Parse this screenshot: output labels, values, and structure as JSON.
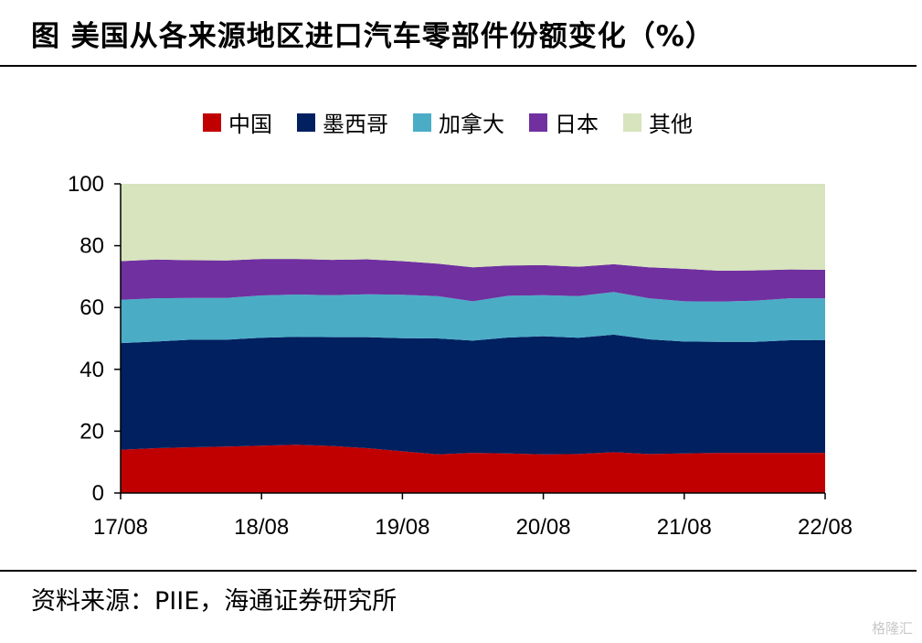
{
  "title": "图 美国从各来源地区进口汽车零部件份额变化（%）",
  "source": "资料来源：PIIE，海通证券研究所",
  "watermark": "格隆汇",
  "chart_data": {
    "type": "area",
    "stacked": true,
    "title": "美国从各来源地区进口汽车零部件份额变化（%）",
    "xlabel": "",
    "ylabel": "",
    "ylim": [
      0,
      100
    ],
    "yticks": [
      "0",
      "20",
      "40",
      "60",
      "80",
      "100"
    ],
    "xtick_labels": [
      "17/08",
      "18/08",
      "19/08",
      "20/08",
      "21/08",
      "22/08"
    ],
    "legend_position": "top",
    "n_points": 21,
    "series": [
      {
        "name": "中国",
        "color": "#c00000",
        "values": [
          14.0,
          14.5,
          14.8,
          15.0,
          15.3,
          15.6,
          15.2,
          14.5,
          13.5,
          12.5,
          13.0,
          12.8,
          12.5,
          12.6,
          13.2,
          12.6,
          12.8,
          13.0,
          13.0,
          13.0,
          13.0
        ]
      },
      {
        "name": "墨西哥",
        "color": "#002060",
        "values": [
          34.5,
          34.5,
          34.8,
          34.6,
          34.9,
          34.9,
          35.2,
          35.9,
          36.6,
          37.5,
          36.3,
          37.5,
          38.2,
          37.6,
          38.0,
          37.1,
          36.2,
          35.9,
          35.9,
          36.4,
          36.5
        ]
      },
      {
        "name": "加拿大",
        "color": "#4bacc6",
        "values": [
          14.0,
          14.0,
          13.5,
          13.5,
          13.7,
          13.7,
          13.6,
          13.9,
          14.0,
          13.7,
          12.7,
          13.5,
          13.3,
          13.5,
          13.8,
          13.3,
          13.0,
          13.0,
          13.3,
          13.6,
          13.5
        ]
      },
      {
        "name": "日本",
        "color": "#7030a0",
        "values": [
          12.5,
          12.5,
          12.2,
          12.1,
          11.8,
          11.5,
          11.4,
          11.3,
          10.9,
          10.5,
          11.0,
          9.8,
          9.7,
          9.5,
          9.0,
          10.0,
          10.5,
          10.0,
          9.8,
          9.3,
          9.2
        ]
      },
      {
        "name": "其他",
        "color": "#d7e4bd",
        "values": [
          25.0,
          24.5,
          24.7,
          24.8,
          24.3,
          24.3,
          24.6,
          24.4,
          25.0,
          25.8,
          27.0,
          26.4,
          26.3,
          26.8,
          26.0,
          27.0,
          27.5,
          28.1,
          28.0,
          27.7,
          27.8
        ]
      }
    ]
  }
}
